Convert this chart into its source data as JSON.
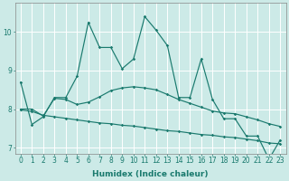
{
  "xlabel": "Humidex (Indice chaleur)",
  "x_values": [
    0,
    1,
    2,
    3,
    4,
    5,
    6,
    7,
    8,
    9,
    10,
    11,
    12,
    13,
    14,
    15,
    16,
    17,
    18,
    19,
    20,
    21,
    22,
    23
  ],
  "line1_y": [
    8.7,
    7.6,
    7.8,
    8.3,
    8.3,
    8.85,
    10.25,
    9.6,
    9.6,
    9.05,
    9.3,
    10.4,
    10.05,
    9.65,
    8.3,
    8.3,
    9.3,
    8.25,
    7.75,
    7.75,
    7.3,
    7.3,
    6.7,
    7.2
  ],
  "line2_y": [
    8.0,
    8.0,
    7.82,
    8.28,
    8.25,
    8.12,
    8.18,
    8.32,
    8.48,
    8.55,
    8.58,
    8.55,
    8.5,
    8.38,
    8.25,
    8.15,
    8.05,
    7.95,
    7.9,
    7.88,
    7.8,
    7.72,
    7.62,
    7.55
  ],
  "line3_y": [
    7.98,
    7.94,
    7.84,
    7.8,
    7.76,
    7.72,
    7.68,
    7.64,
    7.62,
    7.58,
    7.56,
    7.52,
    7.48,
    7.44,
    7.42,
    7.38,
    7.34,
    7.32,
    7.28,
    7.26,
    7.22,
    7.18,
    7.12,
    7.1
  ],
  "line_color": "#1a7a6e",
  "bg_color": "#cceae7",
  "grid_color": "#ffffff",
  "ylim": [
    6.85,
    10.75
  ],
  "yticks": [
    7,
    8,
    9,
    10
  ],
  "tick_label_size": 5.5,
  "xlabel_size": 6.5
}
